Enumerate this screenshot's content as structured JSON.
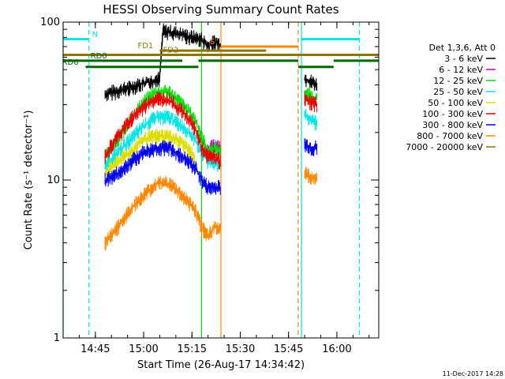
{
  "chart_data": {
    "type": "line",
    "title": "HESSI Observing Summary Count Rates",
    "xlabel": "Start Time (26-Aug-17 14:34:42)",
    "ylabel": "Count Rate (s⁻¹ detector⁻¹)",
    "y_scale": "log",
    "ylim": [
      1,
      100
    ],
    "xlim": [
      "14:35",
      "16:13"
    ],
    "x_ticks": [
      "14:45",
      "15:00",
      "15:15",
      "15:30",
      "15:45",
      "16:00"
    ],
    "y_ticks": [
      "1",
      "10",
      "100"
    ],
    "timestamp": "11-Dec-2017 14:28",
    "legend": {
      "position": "right",
      "title": "Det 1,3,6, Att 0",
      "entries": [
        {
          "label": "3 - 6 keV",
          "color": "#000000"
        },
        {
          "label": "6 - 12 keV",
          "color": "#cc00cc"
        },
        {
          "label": "12 - 25 keV",
          "color": "#00dd00"
        },
        {
          "label": "25 - 50 keV",
          "color": "#00e5e5"
        },
        {
          "label": "50 - 100 keV",
          "color": "#dddd00"
        },
        {
          "label": "100 - 300 keV",
          "color": "#ee0000"
        },
        {
          "label": "300 - 800 keV",
          "color": "#0000ee"
        },
        {
          "label": "800 - 7000 keV",
          "color": "#ff8800"
        },
        {
          "label": "7000 - 20000 keV",
          "color": "#8b7500"
        }
      ]
    },
    "flags": [
      {
        "label": "N",
        "color": "#00e5e5",
        "segments": [
          [
            "14:35",
            "14:43"
          ],
          [
            "15:49",
            "16:07"
          ]
        ],
        "y": 78
      },
      {
        "label": "S",
        "color": "#ff8800",
        "segments": [
          [
            "15:24",
            "15:48"
          ]
        ],
        "y": 70
      },
      {
        "label": "FD1",
        "color": "#8b7500",
        "segments": [
          [
            "15:05",
            "15:38"
          ]
        ],
        "y": 66
      },
      {
        "label": "FD2",
        "color": "#8b7500",
        "segments": [
          [
            "14:35",
            "16:13"
          ]
        ],
        "y": 62
      },
      {
        "label": "RD0",
        "color": "#006600",
        "segments": [
          [
            "14:35",
            "15:12"
          ],
          [
            "15:17",
            "15:48"
          ],
          [
            "15:59",
            "16:13"
          ]
        ],
        "y": 57
      },
      {
        "label": "RD6",
        "color": "#006600",
        "segments": [
          [
            "14:42",
            "15:17"
          ],
          [
            "15:48",
            "15:59"
          ]
        ],
        "y": 52
      }
    ],
    "vertical_markers": [
      {
        "time": "14:35",
        "color": "#00e5e5",
        "style": "solid"
      },
      {
        "time": "14:43",
        "color": "#00e5e5",
        "style": "dashed"
      },
      {
        "time": "15:18",
        "color": "#00dd00",
        "style": "solid"
      },
      {
        "time": "15:24",
        "color": "#ff8800",
        "style": "solid"
      },
      {
        "time": "15:48",
        "color": "#ff8800",
        "style": "dashed"
      },
      {
        "time": "15:49",
        "color": "#00e5e5",
        "style": "solid"
      },
      {
        "time": "16:07",
        "color": "#00e5e5",
        "style": "dashed"
      }
    ],
    "series": [
      {
        "name": "3 - 6 keV",
        "color": "#000000",
        "segments": [
          {
            "x": [
              "14:48",
              "14:55",
              "15:02",
              "15:05",
              "15:06",
              "15:10",
              "15:15",
              "15:18",
              "15:20",
              "15:22",
              "15:24"
            ],
            "y": [
              35,
              38,
              42,
              44,
              88,
              85,
              80,
              78,
              70,
              75,
              72
            ]
          },
          {
            "x": [
              "15:50",
              "15:52",
              "15:54"
            ],
            "y": [
              44,
              42,
              40
            ]
          }
        ]
      },
      {
        "name": "6 - 12 keV",
        "color": "#cc00cc",
        "segments": [
          {
            "x": [
              "15:19",
              "15:21",
              "15:23",
              "15:24"
            ],
            "y": [
              15,
              16,
              17,
              16
            ]
          }
        ]
      },
      {
        "name": "12 - 25 keV",
        "color": "#00dd00",
        "segments": [
          {
            "x": [
              "14:48",
              "14:52",
              "14:56",
              "15:00",
              "15:04",
              "15:08",
              "15:12",
              "15:16",
              "15:18",
              "15:20",
              "15:22",
              "15:24"
            ],
            "y": [
              14,
              18,
              24,
              31,
              36,
              36,
              30,
              24,
              19,
              15,
              16,
              15
            ]
          },
          {
            "x": [
              "15:50",
              "15:52",
              "15:54"
            ],
            "y": [
              36,
              34,
              32
            ]
          }
        ]
      },
      {
        "name": "25 - 50 keV",
        "color": "#00e5e5",
        "segments": [
          {
            "x": [
              "14:48",
              "14:52",
              "14:56",
              "15:00",
              "15:04",
              "15:08",
              "15:12",
              "15:16",
              "15:18",
              "15:20",
              "15:22",
              "15:24"
            ],
            "y": [
              12,
              15,
              18,
              22,
              25,
              25,
              22,
              18,
              15,
              13,
              13,
              12
            ]
          },
          {
            "x": [
              "15:50",
              "15:52",
              "15:54"
            ],
            "y": [
              26,
              24,
              23
            ]
          }
        ]
      },
      {
        "name": "50 - 100 keV",
        "color": "#dddd00",
        "segments": [
          {
            "x": [
              "14:48",
              "14:52",
              "14:56",
              "15:00",
              "15:04",
              "15:08",
              "15:12",
              "15:16"
            ],
            "y": [
              11,
              13,
              15,
              18,
              19,
              19,
              17,
              14
            ]
          }
        ]
      },
      {
        "name": "100 - 300 keV",
        "color": "#ee0000",
        "segments": [
          {
            "x": [
              "14:48",
              "14:52",
              "14:56",
              "15:00",
              "15:04",
              "15:08",
              "15:12",
              "15:16",
              "15:18",
              "15:20",
              "15:22",
              "15:24"
            ],
            "y": [
              14,
              19,
              24,
              29,
              33,
              32,
              27,
              21,
              16,
              14,
              14,
              13
            ]
          },
          {
            "x": [
              "15:50",
              "15:52",
              "15:54"
            ],
            "y": [
              33,
              31,
              30
            ]
          }
        ]
      },
      {
        "name": "300 - 800 keV",
        "color": "#0000ee",
        "segments": [
          {
            "x": [
              "14:48",
              "14:52",
              "14:56",
              "15:00",
              "15:04",
              "15:08",
              "15:12",
              "15:16",
              "15:18",
              "15:20",
              "15:22",
              "15:24"
            ],
            "y": [
              10,
              11,
              13,
              15,
              16,
              16,
              14,
              12,
              10,
              9,
              9,
              9
            ]
          },
          {
            "x": [
              "15:50",
              "15:52",
              "15:54"
            ],
            "y": [
              17,
              16,
              16
            ]
          }
        ]
      },
      {
        "name": "800 - 7000 keV",
        "color": "#ff8800",
        "segments": [
          {
            "x": [
              "14:48",
              "14:52",
              "14:56",
              "15:00",
              "15:04",
              "15:08",
              "15:12",
              "15:16",
              "15:18",
              "15:20",
              "15:22",
              "15:24"
            ],
            "y": [
              4,
              5,
              6.5,
              8,
              9.5,
              9.5,
              8,
              6.5,
              5,
              4.5,
              5,
              5
            ]
          },
          {
            "x": [
              "15:50",
              "15:52",
              "15:54"
            ],
            "y": [
              11,
              10.5,
              10
            ]
          }
        ]
      }
    ]
  }
}
